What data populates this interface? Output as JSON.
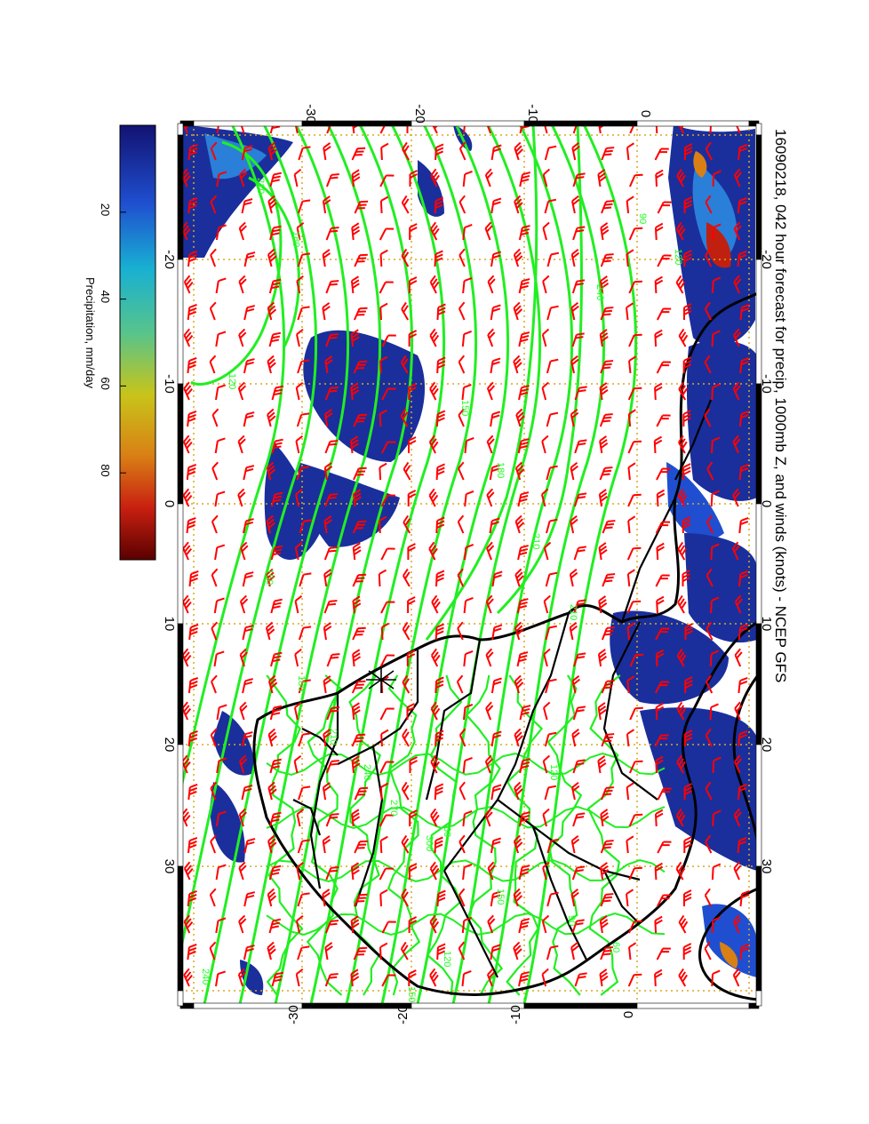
{
  "title": "16090218, 042 hour forecast for precip, 1000mb Z, and winds (knots) - NCEP GFS",
  "colorbar": {
    "label": "Precipitation, mm/day",
    "ticks": [
      "20",
      "40",
      "60",
      "80"
    ],
    "tick_values": [
      20,
      40,
      60,
      80
    ],
    "range": [
      0,
      100
    ],
    "colors": [
      "#1a1a8c",
      "#1f5fd0",
      "#19b4cf",
      "#5cc88a",
      "#c8c41a",
      "#d98015",
      "#c02010",
      "#6a0000"
    ]
  },
  "axes": {
    "top_ticks": [
      "-30",
      "-20",
      "-10",
      "0"
    ],
    "bottom_ticks": [
      "-30",
      "-20",
      "-10",
      "0"
    ],
    "left_ticks": [
      "-20",
      "-10",
      "0",
      "10",
      "20",
      "30"
    ],
    "right_ticks": [
      "-20",
      "-10",
      "0",
      "10",
      "20",
      "30"
    ]
  },
  "contour_labels": [
    "120",
    "150",
    "180",
    "210",
    "240",
    "270",
    "300",
    "150",
    "180",
    "210",
    "210",
    "240",
    "90",
    "120",
    "60",
    "120",
    "150",
    "90",
    "60",
    "120",
    "150",
    "210",
    "180",
    "240"
  ],
  "map": {
    "wind_barb_color": "#ff0000",
    "contour_color": "#22ee22",
    "coast_color": "#000000",
    "grid_color": "#d8a820",
    "marker_symbol": "asterisk"
  }
}
